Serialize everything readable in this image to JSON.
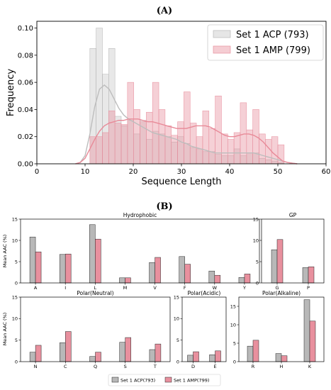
{
  "colors": {
    "acp": "#b8b8b8",
    "amp": "#e8909e",
    "acp_kde": "#bdbdbd",
    "amp_kde": "#e88a98"
  },
  "panel_a_label": "(A)",
  "panel_b_label": "(B)",
  "chart_data": [
    {
      "id": "A",
      "type": "bar",
      "subtype": "overlaid-histogram-with-kde",
      "xlabel": "Sequence Length",
      "ylabel": "Frequency",
      "xlim": [
        0,
        60
      ],
      "ylim": [
        0,
        0.105
      ],
      "xticks": [
        0,
        10,
        20,
        30,
        40,
        50,
        60
      ],
      "yticks": [
        "0.00",
        "0.02",
        "0.04",
        "0.06",
        "0.08",
        "0.10"
      ],
      "grid": false,
      "legend_position": "top-right",
      "bin_width": 1.3,
      "series": [
        {
          "name": "Set 1 ACP (793)",
          "color_key": "acp",
          "bin_starts": [
            11,
            12.3,
            13.6,
            14.9,
            16.2,
            17.5,
            18.8,
            20.1,
            21.4,
            22.7,
            24,
            25.3,
            26.6,
            27.9,
            29.2,
            30.5,
            31.8,
            33.1,
            34.4,
            35.7,
            37,
            38.3,
            39.6,
            40.9,
            42.2,
            43.5,
            44.8,
            46.1,
            47.4,
            48.7,
            50
          ],
          "values": [
            0.085,
            0.1,
            0.066,
            0.085,
            0.035,
            0.028,
            0.032,
            0.022,
            0.032,
            0.018,
            0.024,
            0.022,
            0.02,
            0.016,
            0.02,
            0.015,
            0.012,
            0.011,
            0.009,
            0.009,
            0.007,
            0.006,
            0.006,
            0.011,
            0.006,
            0.008,
            0.008,
            0.004,
            0.003,
            0.002,
            0.001
          ],
          "kde": [
            [
              8,
              0
            ],
            [
              9,
              0.001
            ],
            [
              10,
              0.006
            ],
            [
              11,
              0.022
            ],
            [
              12,
              0.042
            ],
            [
              13,
              0.055
            ],
            [
              14,
              0.058
            ],
            [
              15,
              0.055
            ],
            [
              16,
              0.048
            ],
            [
              17,
              0.041
            ],
            [
              18,
              0.036
            ],
            [
              19,
              0.033
            ],
            [
              20,
              0.031
            ],
            [
              21,
              0.029
            ],
            [
              22,
              0.027
            ],
            [
              23,
              0.025
            ],
            [
              24,
              0.023
            ],
            [
              25,
              0.022
            ],
            [
              26,
              0.021
            ],
            [
              27,
              0.02
            ],
            [
              28,
              0.019
            ],
            [
              29,
              0.018
            ],
            [
              30,
              0.016
            ],
            [
              31,
              0.015
            ],
            [
              32,
              0.013
            ],
            [
              33,
              0.012
            ],
            [
              34,
              0.011
            ],
            [
              35,
              0.01
            ],
            [
              36,
              0.009
            ],
            [
              37,
              0.008
            ],
            [
              38,
              0.008
            ],
            [
              39,
              0.008
            ],
            [
              40,
              0.008
            ],
            [
              41,
              0.008
            ],
            [
              42,
              0.008
            ],
            [
              43,
              0.008
            ],
            [
              44,
              0.008
            ],
            [
              45,
              0.008
            ],
            [
              46,
              0.007
            ],
            [
              47,
              0.006
            ],
            [
              48,
              0.005
            ],
            [
              49,
              0.004
            ],
            [
              50,
              0.003
            ],
            [
              51,
              0.002
            ],
            [
              52,
              0.001
            ],
            [
              54,
              0
            ]
          ]
        },
        {
          "name": "Set 1 AMP (799)",
          "color_key": "amp",
          "bin_starts": [
            11,
            12.3,
            13.6,
            14.9,
            16.2,
            17.5,
            18.8,
            20.1,
            21.4,
            22.7,
            24,
            25.3,
            26.6,
            27.9,
            29.2,
            30.5,
            31.8,
            33.1,
            34.4,
            35.7,
            37,
            38.3,
            39.6,
            40.9,
            42.2,
            43.5,
            44.8,
            46.1,
            47.4,
            48.7,
            50
          ],
          "values": [
            0.02,
            0.02,
            0.023,
            0.039,
            0.03,
            0.029,
            0.06,
            0.04,
            0.031,
            0.038,
            0.06,
            0.04,
            0.028,
            0.021,
            0.031,
            0.053,
            0.03,
            0.02,
            0.039,
            0.026,
            0.05,
            0.022,
            0.018,
            0.023,
            0.045,
            0.025,
            0.04,
            0.022,
            0.018,
            0.02,
            0.014
          ],
          "kde": [
            [
              8,
              0
            ],
            [
              9,
              0.001
            ],
            [
              10,
              0.004
            ],
            [
              11,
              0.011
            ],
            [
              12,
              0.018
            ],
            [
              13,
              0.024
            ],
            [
              14,
              0.028
            ],
            [
              15,
              0.03
            ],
            [
              16,
              0.031
            ],
            [
              17,
              0.032
            ],
            [
              18,
              0.032
            ],
            [
              19,
              0.033
            ],
            [
              20,
              0.033
            ],
            [
              21,
              0.033
            ],
            [
              22,
              0.032
            ],
            [
              23,
              0.031
            ],
            [
              24,
              0.031
            ],
            [
              25,
              0.03
            ],
            [
              26,
              0.029
            ],
            [
              27,
              0.028
            ],
            [
              28,
              0.027
            ],
            [
              29,
              0.026
            ],
            [
              30,
              0.026
            ],
            [
              31,
              0.026
            ],
            [
              32,
              0.027
            ],
            [
              33,
              0.028
            ],
            [
              34,
              0.028
            ],
            [
              35,
              0.028
            ],
            [
              36,
              0.027
            ],
            [
              37,
              0.025
            ],
            [
              38,
              0.023
            ],
            [
              39,
              0.021
            ],
            [
              40,
              0.02
            ],
            [
              41,
              0.02
            ],
            [
              42,
              0.021
            ],
            [
              43,
              0.022
            ],
            [
              44,
              0.022
            ],
            [
              45,
              0.021
            ],
            [
              46,
              0.019
            ],
            [
              47,
              0.016
            ],
            [
              48,
              0.012
            ],
            [
              49,
              0.008
            ],
            [
              50,
              0.005
            ],
            [
              51,
              0.002
            ],
            [
              52,
              0.001
            ],
            [
              53,
              0.0004
            ],
            [
              54,
              0
            ]
          ]
        }
      ]
    },
    {
      "id": "B",
      "type": "bar",
      "ylabel": "Mean AAC (%)",
      "series_names": [
        "Set 1 ACP(793)",
        "Set 1 AMP(799)"
      ],
      "legend_position": "bottom-center",
      "grid": false,
      "groups": [
        {
          "title": "Hydrophobic",
          "categories": [
            "A",
            "I",
            "L",
            "M",
            "V",
            "F",
            "W",
            "Y"
          ],
          "acp": [
            10.8,
            6.7,
            13.7,
            1.2,
            4.8,
            6.2,
            2.8,
            1.3
          ],
          "amp": [
            7.3,
            6.8,
            10.3,
            1.2,
            6.0,
            4.4,
            1.8,
            2.1
          ],
          "ylim": [
            0,
            15
          ],
          "yticks": [
            0,
            5,
            10,
            15
          ]
        },
        {
          "title": "GP",
          "categories": [
            "G",
            "P"
          ],
          "acp": [
            7.8,
            3.6
          ],
          "amp": [
            10.2,
            3.8
          ],
          "ylim": [
            0,
            15
          ],
          "yticks": [
            0,
            5,
            10,
            15
          ]
        },
        {
          "title": "Polar(Neutral)",
          "categories": [
            "N",
            "C",
            "Q",
            "S",
            "T"
          ],
          "acp": [
            2.2,
            4.4,
            1.2,
            4.5,
            2.8
          ],
          "amp": [
            3.8,
            7.0,
            2.2,
            5.6,
            4.1
          ],
          "ylim": [
            0,
            15
          ],
          "yticks": [
            0,
            5,
            10,
            15
          ]
        },
        {
          "title": "Polar(Acidic)",
          "categories": [
            "D",
            "E"
          ],
          "acp": [
            1.5,
            1.6
          ],
          "amp": [
            2.3,
            2.5
          ],
          "ylim": [
            0,
            15
          ],
          "yticks": [
            0,
            5,
            10,
            15
          ]
        },
        {
          "title": "Polar(Alkaline)",
          "categories": [
            "R",
            "H",
            "K"
          ],
          "acp": [
            4.2,
            2.2,
            16.8
          ],
          "amp": [
            5.8,
            1.6,
            11.0
          ],
          "ylim": [
            0,
            17.5
          ],
          "yticks": [
            0,
            5,
            10,
            15
          ]
        }
      ]
    }
  ]
}
